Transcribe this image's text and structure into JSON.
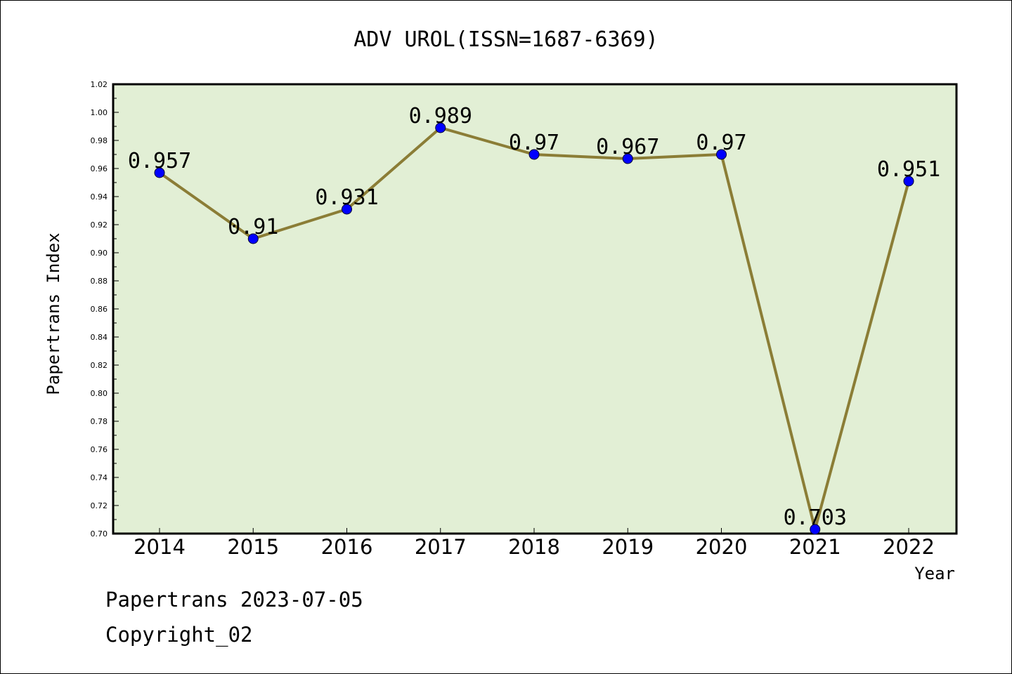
{
  "chart_data": {
    "type": "line",
    "title": "ADV UROL(ISSN=1687-6369)",
    "xlabel": "Year",
    "ylabel": "Papertrans Index",
    "categories": [
      "2014",
      "2015",
      "2016",
      "2017",
      "2018",
      "2019",
      "2020",
      "2021",
      "2022"
    ],
    "series": [
      {
        "values": [
          0.957,
          0.91,
          0.931,
          0.989,
          0.97,
          0.967,
          0.97,
          0.703,
          0.951
        ]
      }
    ],
    "data_labels": [
      "0.957",
      "0.91",
      "0.931",
      "0.989",
      "0.97",
      "0.967",
      "0.97",
      "0.703",
      "0.951"
    ],
    "ylim": [
      0.7,
      1.02
    ],
    "y_ticks": [
      "0.70",
      "0.72",
      "0.74",
      "0.76",
      "0.78",
      "0.80",
      "0.82",
      "0.84",
      "0.86",
      "0.88",
      "0.90",
      "0.92",
      "0.94",
      "0.96",
      "0.98",
      "1.00",
      "1.02"
    ],
    "grid": false,
    "legend": "none",
    "colors": {
      "plot_background": "#e2efd5",
      "line": "#8b7d36",
      "marker": "#0000ff"
    }
  },
  "footer": {
    "line1": "Papertrans 2023-07-05",
    "line2": "Copyright_02"
  }
}
